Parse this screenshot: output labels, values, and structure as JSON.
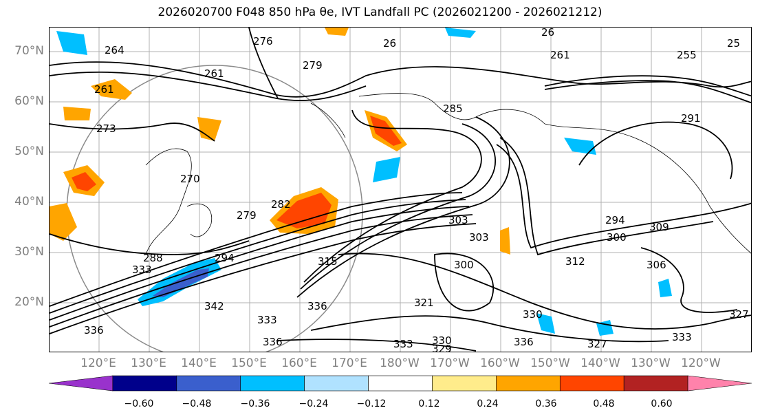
{
  "title": "2026020700 F048 850 hPa θe, IVT Landfall PC (2026021200 - 2026021212)",
  "map": {
    "lat_labels": [
      "70°N",
      "60°N",
      "50°N",
      "40°N",
      "30°N",
      "20°N"
    ],
    "lon_labels": [
      "120°E",
      "130°E",
      "140°E",
      "150°E",
      "160°E",
      "170°E",
      "180°W",
      "170°W",
      "160°W",
      "150°W",
      "140°W",
      "130°W",
      "120°W"
    ],
    "contour_labels": [
      "276",
      "264",
      "261",
      "279",
      "261",
      "26",
      "26",
      "261",
      "255",
      "25",
      "285",
      "291",
      "273",
      "270",
      "279",
      "282",
      "294",
      "309",
      "303",
      "303",
      "300",
      "306",
      "294",
      "288",
      "315",
      "300",
      "312",
      "336",
      "333",
      "336",
      "342",
      "336",
      "321",
      "333",
      "327",
      "333",
      "330",
      "329",
      "327",
      "336",
      "330",
      "333"
    ]
  },
  "colorbar": {
    "ticks": [
      "−0.60",
      "−0.48",
      "−0.36",
      "−0.24",
      "−0.12",
      "0.12",
      "0.24",
      "0.36",
      "0.48",
      "0.60"
    ],
    "colors": [
      "#9932CC",
      "#00008B",
      "#3A5FCD",
      "#00BFFF",
      "#B0E2FF",
      "#FFFFFF",
      "#FFEC8B",
      "#FFA500",
      "#FF4500",
      "#B22222",
      "#FF82AB"
    ]
  }
}
